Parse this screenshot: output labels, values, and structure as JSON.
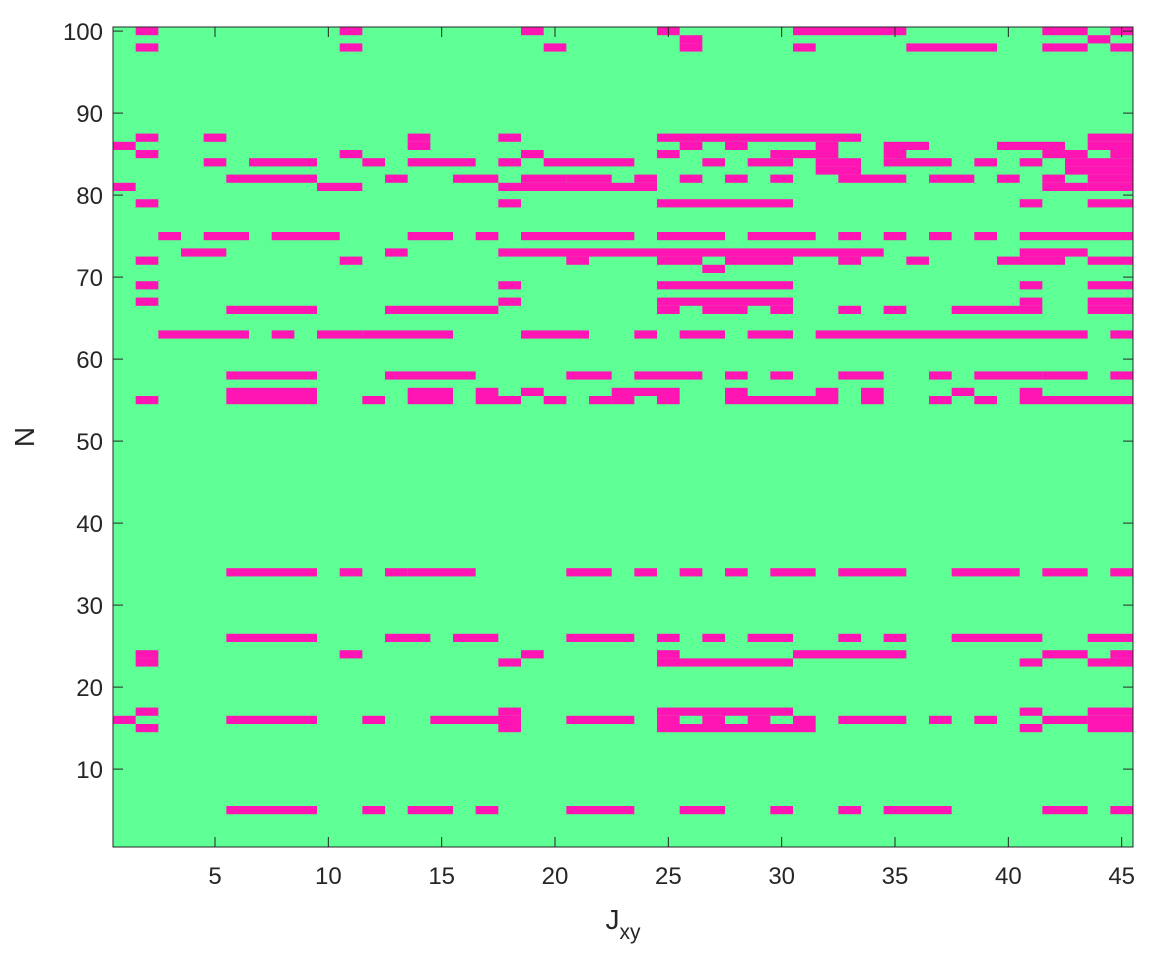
{
  "chart_data": {
    "type": "heatmap",
    "title": "",
    "xlabel": "J",
    "xlabel_subscript": "xy",
    "ylabel": "N",
    "x_categories_range": [
      1,
      45
    ],
    "y_categories_range": [
      1,
      100
    ],
    "xlim": [
      0.5,
      45.5
    ],
    "ylim": [
      0.5,
      100.5
    ],
    "xticks": [
      5,
      10,
      15,
      20,
      25,
      30,
      35,
      40,
      45
    ],
    "yticks": [
      10,
      20,
      30,
      40,
      50,
      60,
      70,
      80,
      90,
      100
    ],
    "grid": false,
    "legend": "none",
    "colors": {
      "background_state": "#5eff94",
      "highlight_state": "#ff14b4",
      "axis": "#262626"
    },
    "state_values": {
      "background": 0,
      "highlight": 1
    },
    "highlighted_cells": [
      {
        "N": 100,
        "J": [
          [
            2,
            2
          ],
          [
            11,
            11
          ],
          [
            19,
            19
          ],
          [
            25,
            25
          ],
          [
            31,
            35
          ],
          [
            42,
            43
          ],
          [
            45,
            45
          ]
        ]
      },
      {
        "N": 99,
        "J": [
          [
            26,
            26
          ],
          [
            44,
            44
          ]
        ]
      },
      {
        "N": 98,
        "J": [
          [
            2,
            2
          ],
          [
            11,
            11
          ],
          [
            20,
            20
          ],
          [
            26,
            26
          ],
          [
            31,
            31
          ],
          [
            36,
            39
          ],
          [
            42,
            43
          ],
          [
            45,
            45
          ]
        ]
      },
      {
        "N": 87,
        "J": [
          [
            2,
            2
          ],
          [
            5,
            5
          ],
          [
            14,
            14
          ],
          [
            18,
            18
          ],
          [
            25,
            33
          ],
          [
            44,
            45
          ]
        ]
      },
      {
        "N": 86,
        "J": [
          [
            1,
            1
          ],
          [
            14,
            14
          ],
          [
            26,
            26
          ],
          [
            28,
            28
          ],
          [
            32,
            32
          ],
          [
            35,
            36
          ],
          [
            40,
            42
          ],
          [
            44,
            45
          ]
        ]
      },
      {
        "N": 85,
        "J": [
          [
            2,
            2
          ],
          [
            11,
            11
          ],
          [
            19,
            19
          ],
          [
            25,
            25
          ],
          [
            30,
            32
          ],
          [
            35,
            35
          ],
          [
            42,
            43
          ],
          [
            45,
            45
          ]
        ]
      },
      {
        "N": 84,
        "J": [
          [
            5,
            5
          ],
          [
            7,
            9
          ],
          [
            12,
            12
          ],
          [
            14,
            16
          ],
          [
            18,
            18
          ],
          [
            20,
            23
          ],
          [
            27,
            27
          ],
          [
            29,
            30
          ],
          [
            32,
            33
          ],
          [
            35,
            37
          ],
          [
            39,
            39
          ],
          [
            41,
            41
          ],
          [
            43,
            45
          ]
        ]
      },
      {
        "N": 83,
        "J": [
          [
            32,
            33
          ],
          [
            43,
            45
          ]
        ]
      },
      {
        "N": 82,
        "J": [
          [
            6,
            9
          ],
          [
            13,
            13
          ],
          [
            16,
            17
          ],
          [
            19,
            20
          ],
          [
            21,
            22
          ],
          [
            24,
            24
          ],
          [
            26,
            26
          ],
          [
            28,
            28
          ],
          [
            30,
            30
          ],
          [
            33,
            35
          ],
          [
            37,
            38
          ],
          [
            40,
            40
          ],
          [
            42,
            42
          ],
          [
            44,
            45
          ]
        ]
      },
      {
        "N": 81,
        "J": [
          [
            1,
            1
          ],
          [
            10,
            11
          ],
          [
            18,
            24
          ],
          [
            42,
            43
          ],
          [
            44,
            45
          ]
        ]
      },
      {
        "N": 79,
        "J": [
          [
            2,
            2
          ],
          [
            18,
            18
          ],
          [
            25,
            30
          ],
          [
            41,
            41
          ],
          [
            44,
            45
          ]
        ]
      },
      {
        "N": 75,
        "J": [
          [
            3,
            3
          ],
          [
            5,
            6
          ],
          [
            8,
            10
          ],
          [
            14,
            15
          ],
          [
            17,
            17
          ],
          [
            19,
            23
          ],
          [
            25,
            27
          ],
          [
            29,
            31
          ],
          [
            33,
            33
          ],
          [
            35,
            35
          ],
          [
            37,
            37
          ],
          [
            39,
            39
          ],
          [
            41,
            45
          ]
        ]
      },
      {
        "N": 74,
        "J": []
      },
      {
        "N": 73,
        "J": [
          [
            4,
            5
          ],
          [
            13,
            13
          ],
          [
            18,
            30
          ],
          [
            31,
            34
          ],
          [
            41,
            43
          ]
        ]
      },
      {
        "N": 72,
        "J": [
          [
            2,
            2
          ],
          [
            11,
            11
          ],
          [
            21,
            21
          ],
          [
            25,
            26
          ],
          [
            28,
            30
          ],
          [
            33,
            33
          ],
          [
            36,
            36
          ],
          [
            40,
            42
          ],
          [
            44,
            45
          ]
        ]
      },
      {
        "N": 71,
        "J": [
          [
            27,
            27
          ]
        ]
      },
      {
        "N": 69,
        "J": [
          [
            2,
            2
          ],
          [
            18,
            18
          ],
          [
            25,
            30
          ],
          [
            41,
            41
          ],
          [
            44,
            45
          ]
        ]
      },
      {
        "N": 67,
        "J": [
          [
            2,
            2
          ],
          [
            18,
            18
          ],
          [
            25,
            30
          ],
          [
            41,
            41
          ],
          [
            44,
            45
          ]
        ]
      },
      {
        "N": 66,
        "J": [
          [
            6,
            9
          ],
          [
            13,
            15
          ],
          [
            16,
            17
          ],
          [
            25,
            25
          ],
          [
            27,
            28
          ],
          [
            30,
            30
          ],
          [
            33,
            33
          ],
          [
            35,
            35
          ],
          [
            38,
            41
          ],
          [
            44,
            45
          ]
        ]
      },
      {
        "N": 63,
        "J": [
          [
            3,
            6
          ],
          [
            8,
            8
          ],
          [
            10,
            11
          ],
          [
            12,
            15
          ],
          [
            19,
            21
          ],
          [
            24,
            24
          ],
          [
            26,
            27
          ],
          [
            29,
            30
          ],
          [
            32,
            43
          ],
          [
            45,
            45
          ]
        ]
      },
      {
        "N": 58,
        "J": [
          [
            6,
            9
          ],
          [
            13,
            16
          ],
          [
            21,
            22
          ],
          [
            24,
            26
          ],
          [
            28,
            28
          ],
          [
            30,
            30
          ],
          [
            33,
            34
          ],
          [
            37,
            37
          ],
          [
            39,
            41
          ],
          [
            42,
            43
          ],
          [
            45,
            45
          ]
        ]
      },
      {
        "N": 57,
        "J": []
      },
      {
        "N": 56,
        "J": [
          [
            6,
            9
          ],
          [
            14,
            15
          ],
          [
            17,
            17
          ],
          [
            19,
            19
          ],
          [
            23,
            25
          ],
          [
            28,
            28
          ],
          [
            32,
            32
          ],
          [
            34,
            34
          ],
          [
            38,
            38
          ],
          [
            41,
            41
          ]
        ]
      },
      {
        "N": 55,
        "J": [
          [
            2,
            2
          ],
          [
            6,
            9
          ],
          [
            12,
            12
          ],
          [
            14,
            15
          ],
          [
            17,
            18
          ],
          [
            20,
            20
          ],
          [
            22,
            22
          ],
          [
            23,
            23
          ],
          [
            25,
            25
          ],
          [
            28,
            30
          ],
          [
            31,
            32
          ],
          [
            34,
            34
          ],
          [
            37,
            37
          ],
          [
            39,
            39
          ],
          [
            41,
            45
          ]
        ]
      },
      {
        "N": 34,
        "J": [
          [
            6,
            9
          ],
          [
            11,
            11
          ],
          [
            13,
            13
          ],
          [
            14,
            16
          ],
          [
            21,
            22
          ],
          [
            24,
            24
          ],
          [
            26,
            26
          ],
          [
            28,
            28
          ],
          [
            30,
            31
          ],
          [
            33,
            35
          ],
          [
            38,
            40
          ],
          [
            42,
            43
          ],
          [
            45,
            45
          ]
        ]
      },
      {
        "N": 26,
        "J": [
          [
            6,
            9
          ],
          [
            13,
            14
          ],
          [
            16,
            17
          ],
          [
            21,
            23
          ],
          [
            25,
            25
          ],
          [
            27,
            27
          ],
          [
            29,
            30
          ],
          [
            33,
            33
          ],
          [
            35,
            35
          ],
          [
            38,
            41
          ],
          [
            44,
            45
          ]
        ]
      },
      {
        "N": 24,
        "J": [
          [
            2,
            2
          ],
          [
            11,
            11
          ],
          [
            19,
            19
          ],
          [
            25,
            25
          ],
          [
            31,
            35
          ],
          [
            42,
            43
          ],
          [
            45,
            45
          ]
        ]
      },
      {
        "N": 23,
        "J": [
          [
            2,
            2
          ],
          [
            18,
            18
          ],
          [
            25,
            30
          ],
          [
            41,
            41
          ],
          [
            44,
            45
          ]
        ]
      },
      {
        "N": 17,
        "J": [
          [
            2,
            2
          ],
          [
            18,
            18
          ],
          [
            25,
            30
          ],
          [
            41,
            41
          ],
          [
            44,
            45
          ]
        ]
      },
      {
        "N": 16,
        "J": [
          [
            1,
            1
          ],
          [
            6,
            9
          ],
          [
            12,
            12
          ],
          [
            15,
            18
          ],
          [
            21,
            23
          ],
          [
            25,
            25
          ],
          [
            27,
            27
          ],
          [
            29,
            29
          ],
          [
            31,
            31
          ],
          [
            33,
            35
          ],
          [
            37,
            37
          ],
          [
            39,
            39
          ],
          [
            42,
            43
          ],
          [
            44,
            45
          ]
        ]
      },
      {
        "N": 15,
        "J": [
          [
            2,
            2
          ],
          [
            18,
            18
          ],
          [
            25,
            31
          ],
          [
            41,
            41
          ],
          [
            44,
            45
          ]
        ]
      },
      {
        "N": 5,
        "J": [
          [
            6,
            9
          ],
          [
            12,
            12
          ],
          [
            14,
            15
          ],
          [
            17,
            17
          ],
          [
            21,
            23
          ],
          [
            26,
            27
          ],
          [
            30,
            30
          ],
          [
            33,
            33
          ],
          [
            35,
            37
          ],
          [
            42,
            43
          ],
          [
            45,
            45
          ]
        ]
      }
    ]
  }
}
